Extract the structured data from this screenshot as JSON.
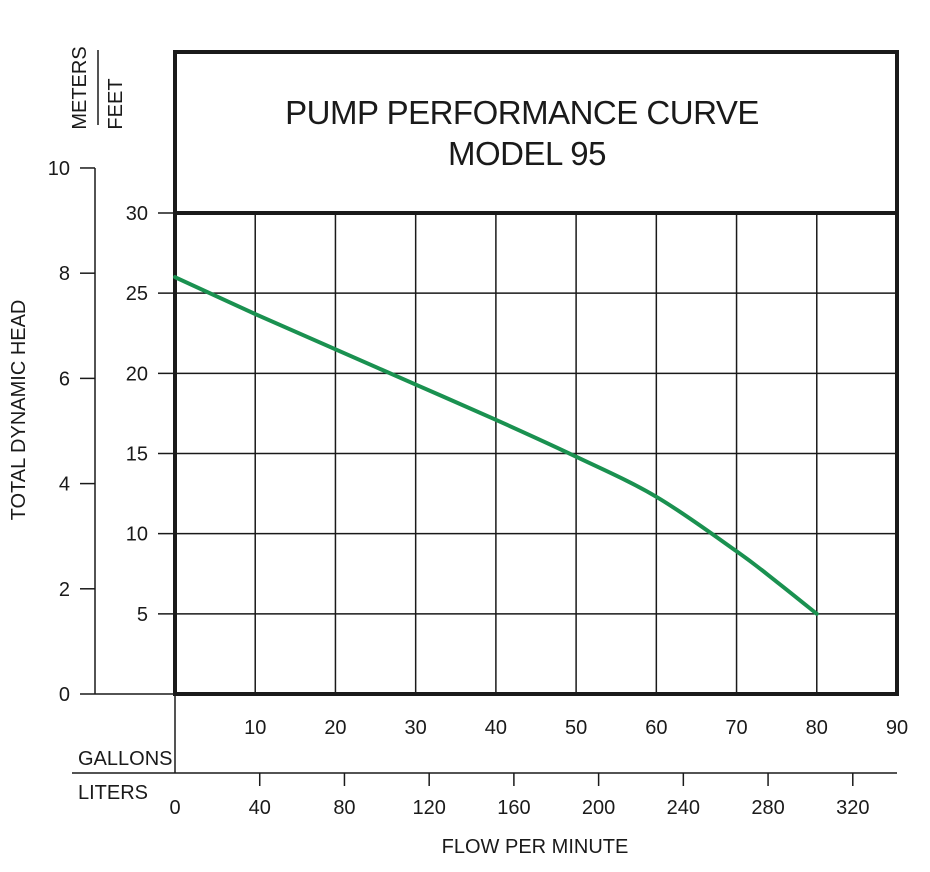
{
  "chart_data": {
    "type": "line",
    "title_line1": "PUMP PERFORMANCE CURVE",
    "title_line2": "MODEL 95",
    "xlabel": "FLOW PER MINUTE",
    "ylabel": "TOTAL DYNAMIC HEAD",
    "x_unit_primary": "GALLONS",
    "x_unit_secondary": "LITERS",
    "y_unit_primary": "FEET",
    "y_unit_secondary": "METERS",
    "xlim": [
      0,
      90
    ],
    "ylim": [
      0,
      30
    ],
    "x_ticks": [
      10,
      20,
      30,
      40,
      50,
      60,
      70,
      80,
      90
    ],
    "y_ticks": [
      5,
      10,
      15,
      20,
      25,
      30
    ],
    "liters_ticks": [
      0,
      40,
      80,
      120,
      160,
      200,
      240,
      280,
      320
    ],
    "meters_ticks": [
      0,
      2,
      4,
      6,
      8,
      10
    ],
    "grid": true,
    "series_color": "#1a9150",
    "series": [
      {
        "x": [
          0,
          10,
          20,
          30,
          40,
          50,
          60,
          70,
          75,
          80
        ],
        "y": [
          26,
          23.7,
          21.5,
          19.3,
          17.1,
          14.8,
          12.3,
          8.9,
          7.0,
          5.0
        ]
      }
    ]
  }
}
